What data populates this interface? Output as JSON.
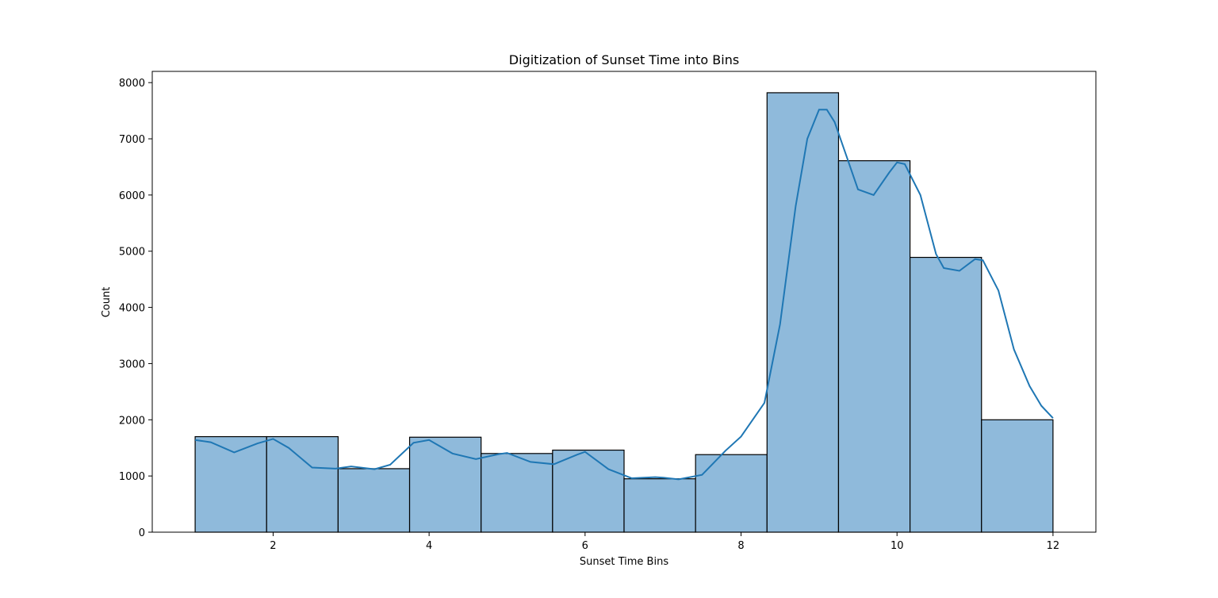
{
  "chart_data": {
    "type": "bar",
    "subtype": "histogram",
    "title": "Digitization of Sunset Time into Bins",
    "xlabel": "Sunset Time Bins",
    "ylabel": "Count",
    "xlim": [
      0.45,
      12.55
    ],
    "ylim": [
      0,
      8200
    ],
    "x_ticks": [
      2,
      4,
      6,
      8,
      10,
      12
    ],
    "y_ticks": [
      0,
      1000,
      2000,
      3000,
      4000,
      5000,
      6000,
      7000,
      8000
    ],
    "grid": false,
    "legend": "none",
    "bin_edges": [
      1.0,
      1.9167,
      2.8333,
      3.75,
      4.6667,
      5.5833,
      6.5,
      7.4167,
      8.3333,
      9.25,
      10.1667,
      11.0833,
      12.0
    ],
    "values": [
      1700,
      1700,
      1130,
      1690,
      1400,
      1460,
      950,
      1380,
      7820,
      6610,
      4890,
      2000
    ],
    "kde": {
      "x": [
        1.0,
        1.2,
        1.5,
        1.8,
        2.0,
        2.2,
        2.5,
        2.8,
        3.0,
        3.3,
        3.5,
        3.8,
        4.0,
        4.3,
        4.6,
        4.9,
        5.0,
        5.3,
        5.6,
        5.9,
        6.0,
        6.3,
        6.6,
        6.9,
        7.0,
        7.2,
        7.5,
        7.8,
        8.0,
        8.3,
        8.5,
        8.7,
        8.85,
        9.0,
        9.1,
        9.2,
        9.35,
        9.5,
        9.7,
        9.9,
        10.0,
        10.1,
        10.3,
        10.5,
        10.6,
        10.8,
        11.0,
        11.1,
        11.3,
        11.5,
        11.7,
        11.85,
        12.0
      ],
      "y": [
        1640,
        1600,
        1420,
        1580,
        1660,
        1500,
        1150,
        1130,
        1170,
        1120,
        1200,
        1590,
        1640,
        1400,
        1300,
        1390,
        1410,
        1250,
        1210,
        1380,
        1430,
        1120,
        960,
        980,
        970,
        940,
        1020,
        1450,
        1700,
        2300,
        3700,
        5800,
        7000,
        7520,
        7520,
        7300,
        6700,
        6100,
        6000,
        6400,
        6580,
        6550,
        6000,
        4950,
        4700,
        4650,
        4860,
        4840,
        4300,
        3250,
        2600,
        2250,
        2030
      ]
    },
    "colors": {
      "bar_fill": "#8fbadb",
      "bar_edge": "#000000",
      "kde_line": "#1f77b4"
    }
  }
}
